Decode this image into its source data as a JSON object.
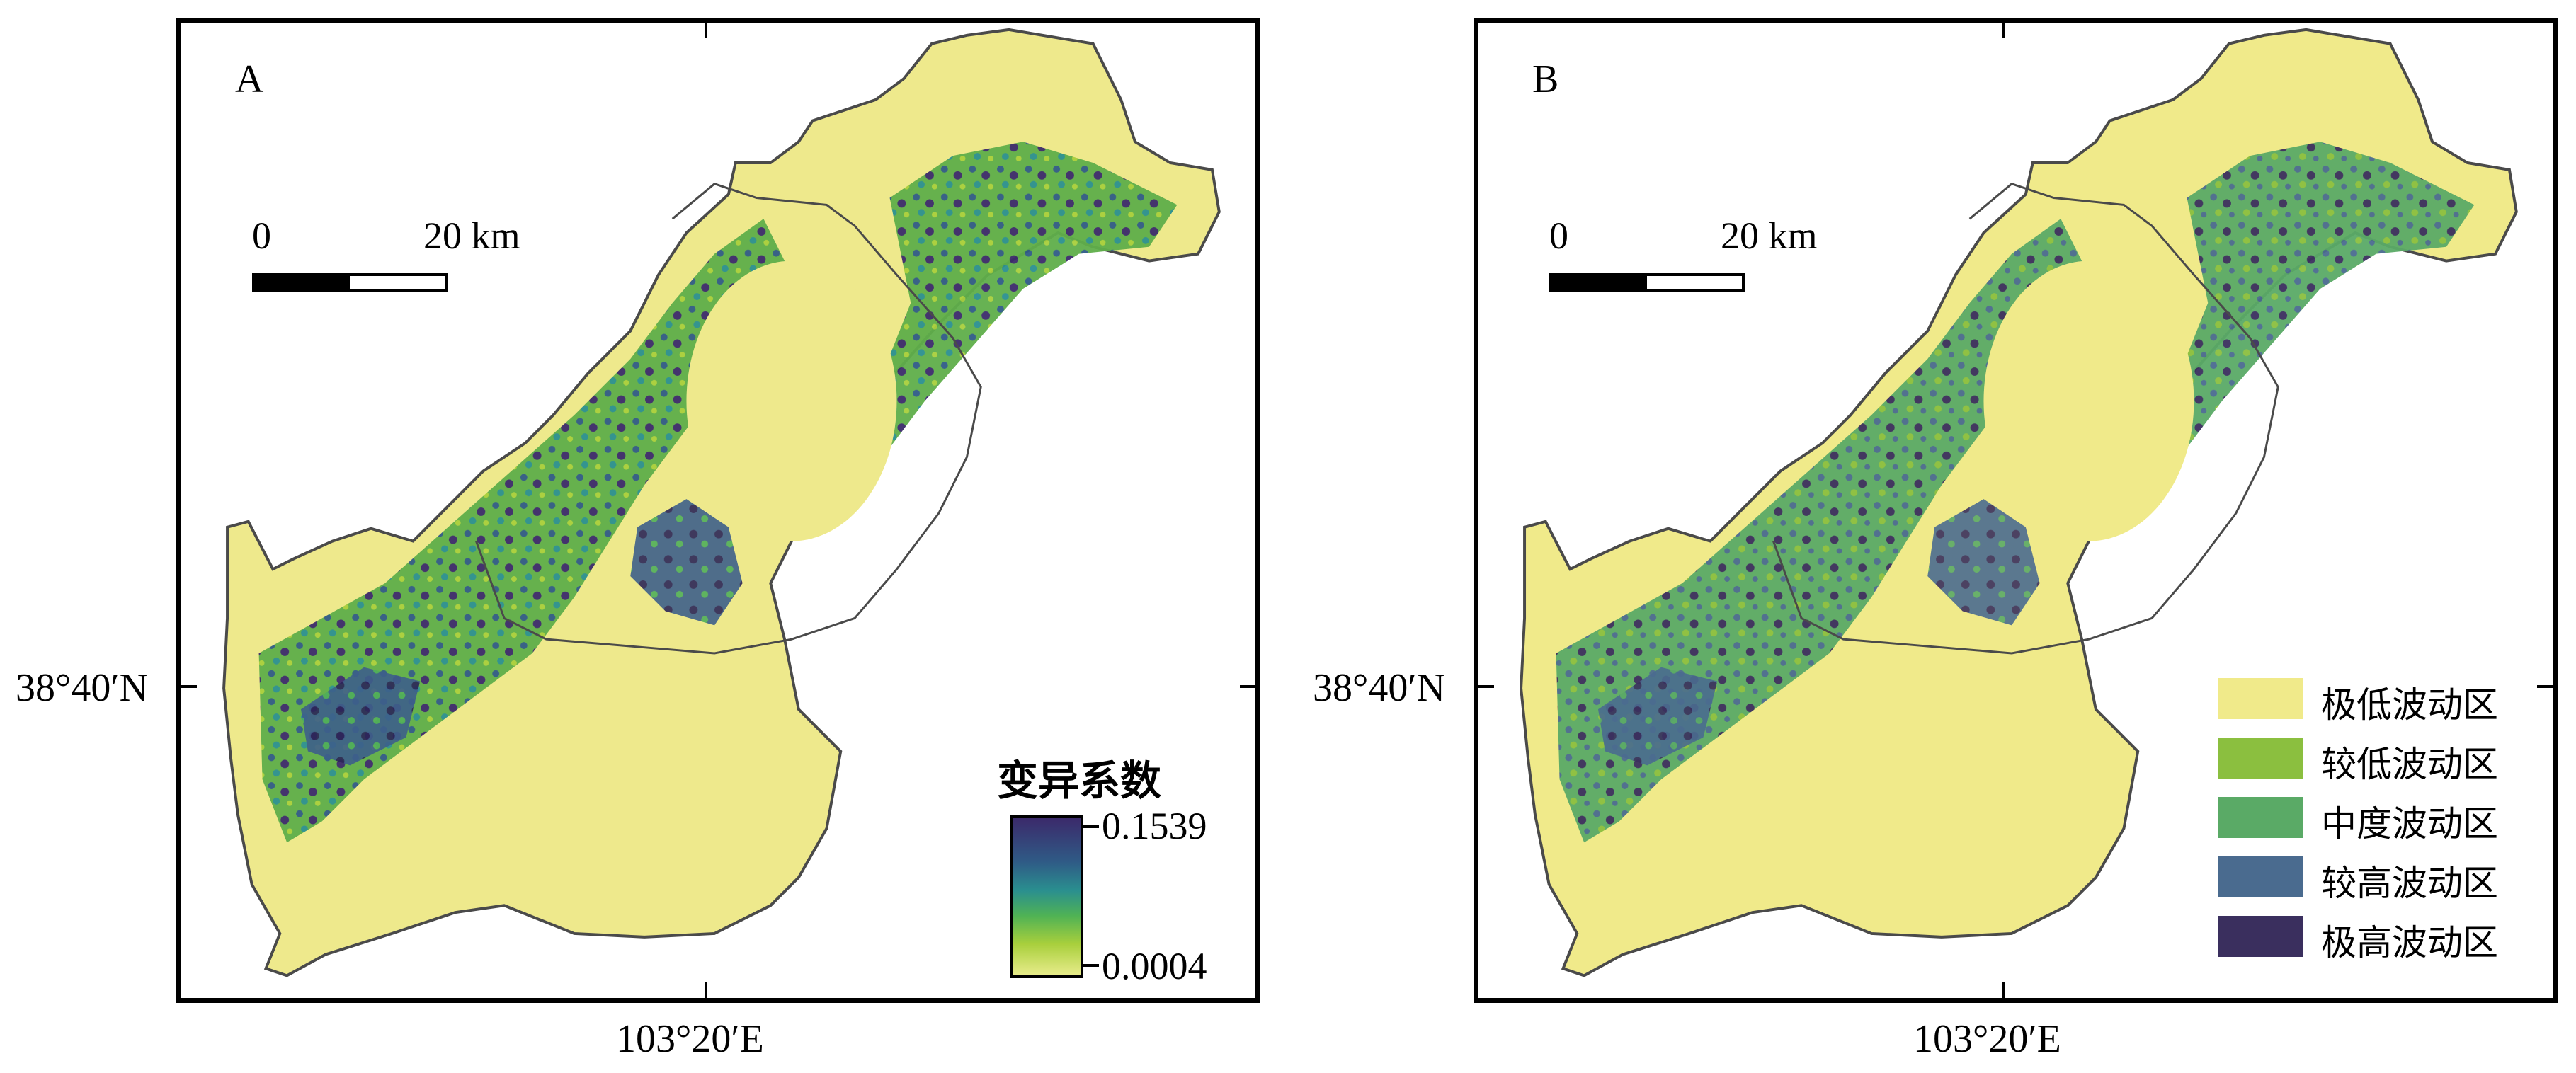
{
  "panels": [
    {
      "id": "A",
      "label": "A"
    },
    {
      "id": "B",
      "label": "B"
    }
  ],
  "axes": {
    "lon_label": "103°20′E",
    "lat_label": "38°40′N"
  },
  "scalebar": {
    "start": "0",
    "end": "20 km"
  },
  "colorbar": {
    "title": "变异系数",
    "max": "0.1539",
    "min": "0.0004",
    "colors": [
      "#3b2a6b",
      "#2f5b86",
      "#2a8f8f",
      "#4fb255",
      "#a8cf3c",
      "#e8ec8b"
    ]
  },
  "legend": {
    "items": [
      {
        "label": "极低波动区",
        "color": "#f0ea8a"
      },
      {
        "label": "较低波动区",
        "color": "#8bbf3f"
      },
      {
        "label": "中度波动区",
        "color": "#5aaa66"
      },
      {
        "label": "较高波动区",
        "color": "#4a6b8f"
      },
      {
        "label": "极高波动区",
        "color": "#3a2f5e"
      }
    ]
  }
}
